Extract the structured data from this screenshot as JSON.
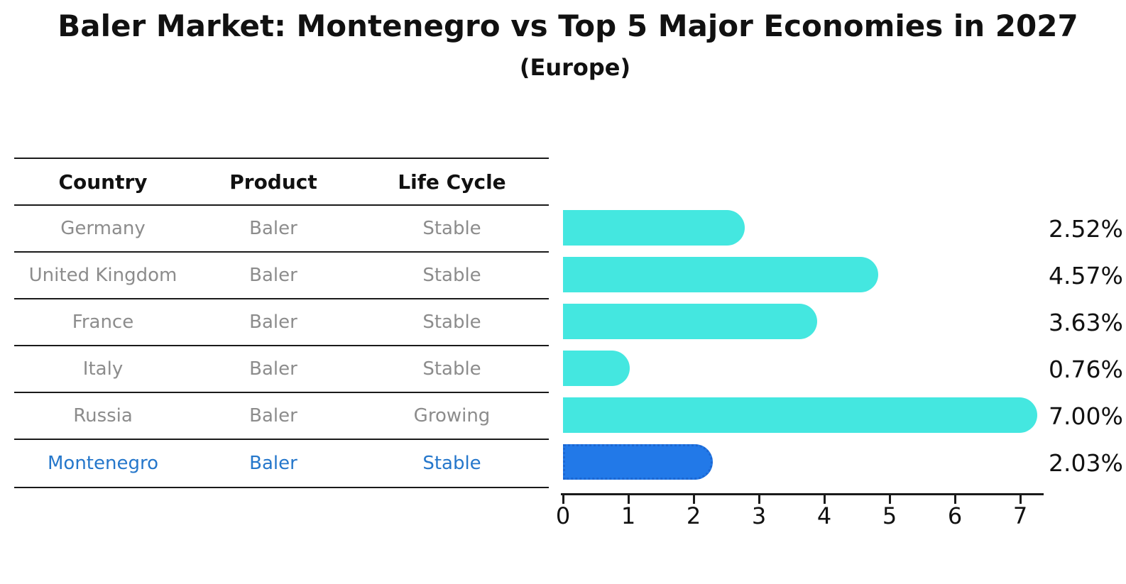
{
  "title": "Baler Market: Montenegro vs Top 5 Major Economies in 2027",
  "subtitle": "(Europe)",
  "table": {
    "headers": [
      "Country",
      "Product",
      "Life Cycle"
    ],
    "rows": [
      {
        "country": "Germany",
        "product": "Baler",
        "life_cycle": "Stable",
        "highlight": false
      },
      {
        "country": "United Kingdom",
        "product": "Baler",
        "life_cycle": "Stable",
        "highlight": false
      },
      {
        "country": "France",
        "product": "Baler",
        "life_cycle": "Stable",
        "highlight": false
      },
      {
        "country": "Italy",
        "product": "Baler",
        "life_cycle": "Stable",
        "highlight": false
      },
      {
        "country": "Russia",
        "product": "Baler",
        "life_cycle": "Growing",
        "highlight": false
      },
      {
        "country": "Montenegro",
        "product": "Baler",
        "life_cycle": "Stable",
        "highlight": true
      }
    ]
  },
  "chart_data": {
    "type": "bar",
    "orientation": "horizontal",
    "title": "Baler Market: Montenegro vs Top 5 Major Economies in 2027",
    "subtitle": "(Europe)",
    "categories": [
      "Germany",
      "United Kingdom",
      "France",
      "Italy",
      "Russia",
      "Montenegro"
    ],
    "values": [
      2.52,
      4.57,
      3.63,
      0.76,
      7.0,
      2.03
    ],
    "value_labels": [
      "2.52%",
      "4.57%",
      "3.63%",
      "0.76%",
      "7.00%",
      "2.03%"
    ],
    "xticks": [
      0,
      1,
      2,
      3,
      4,
      5,
      6,
      7
    ],
    "xlim": [
      0,
      7.35
    ],
    "grid": false,
    "legend": "none",
    "highlight_category": "Montenegro",
    "colors": {
      "bar": "#44e7e0",
      "highlight_bar": "#2279e8",
      "highlight_bar_edge": "#1c67d2",
      "highlight_text": "#2577cb",
      "text": "#111111",
      "muted_text": "#8c8c8c",
      "axis": "#1a1a1a"
    }
  }
}
